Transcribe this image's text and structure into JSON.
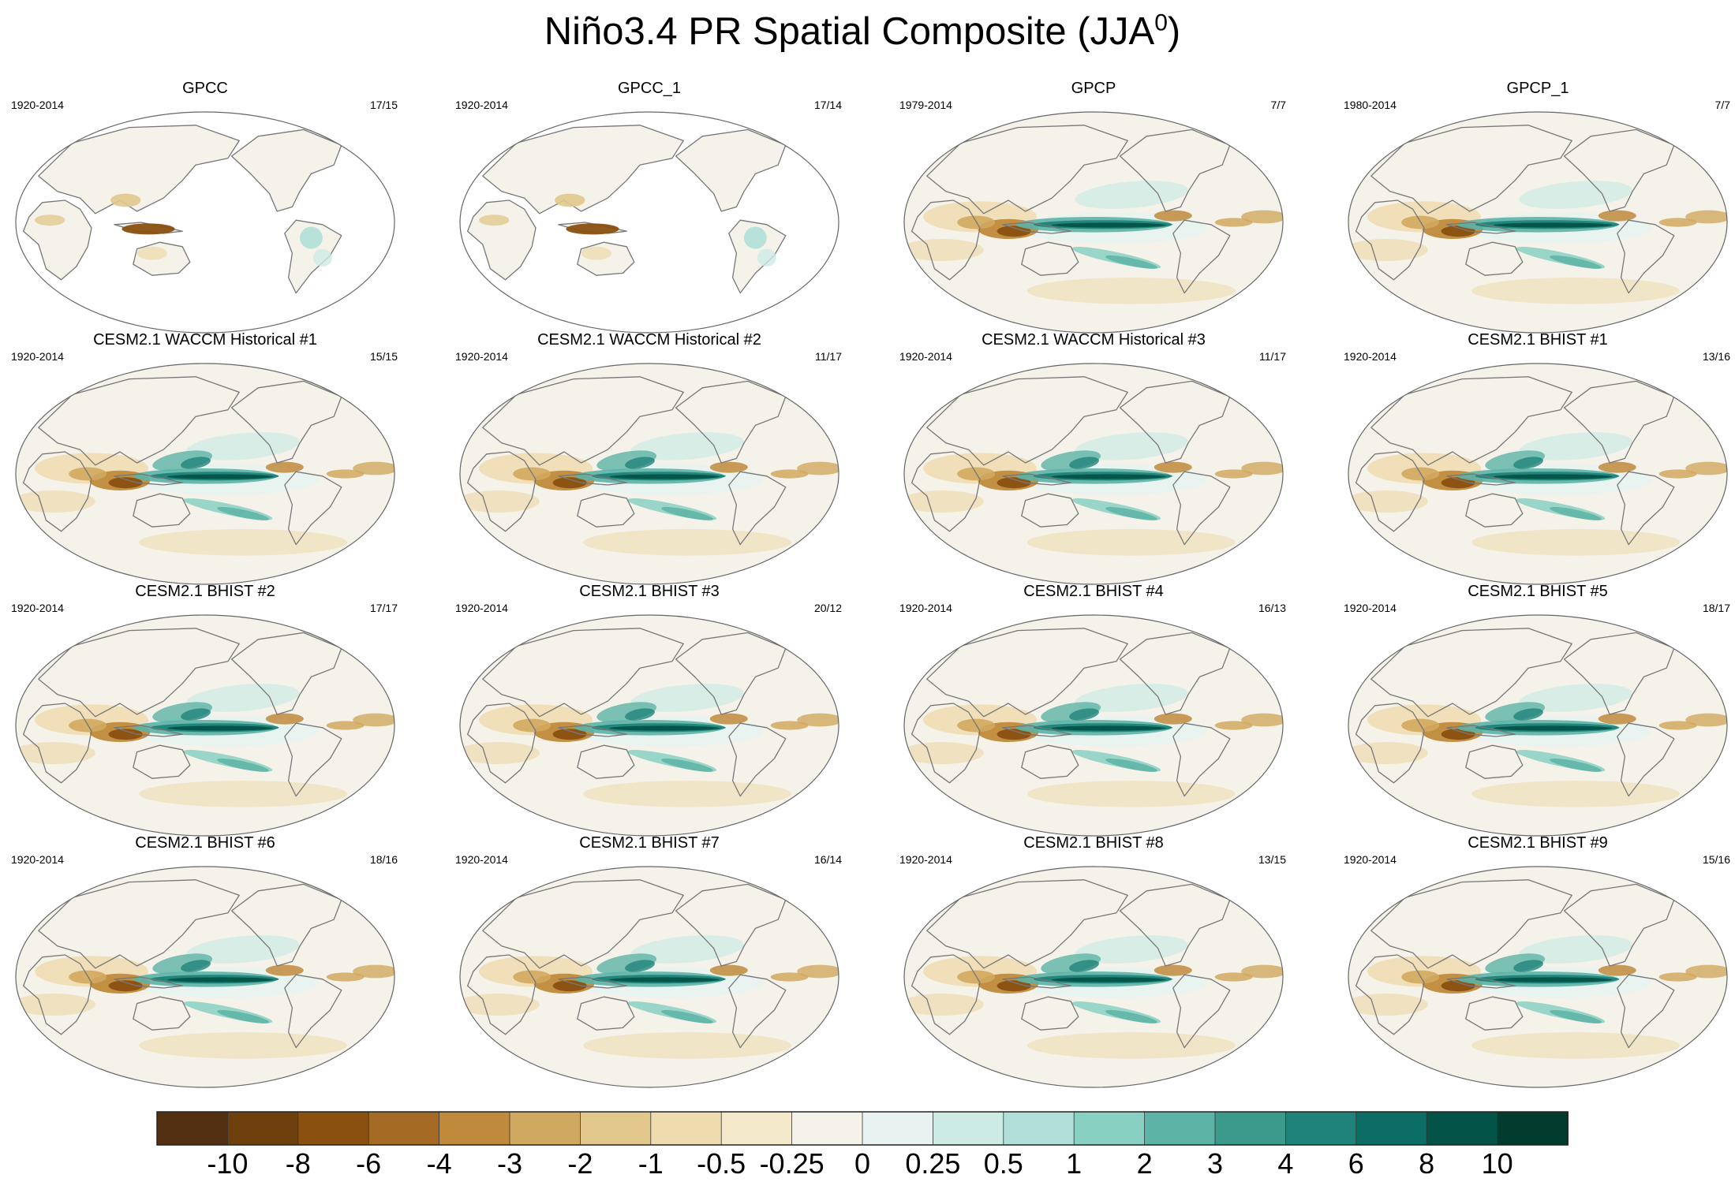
{
  "title": {
    "main": "Niño3.4 PR Spatial Composite (JJA",
    "superscript": "0",
    "suffix": ")"
  },
  "panels": [
    {
      "title": "GPCC",
      "years": "1920-2014",
      "count": "17/15",
      "type": "obs_land"
    },
    {
      "title": "GPCC_1",
      "years": "1920-2014",
      "count": "17/14",
      "type": "obs_land"
    },
    {
      "title": "GPCP",
      "years": "1979-2014",
      "count": "7/7",
      "type": "obs_full"
    },
    {
      "title": "GPCP_1",
      "years": "1980-2014",
      "count": "7/7",
      "type": "obs_full"
    },
    {
      "title": "CESM2.1 WACCM Historical #1",
      "years": "1920-2014",
      "count": "15/15",
      "type": "model"
    },
    {
      "title": "CESM2.1 WACCM Historical #2",
      "years": "1920-2014",
      "count": "11/17",
      "type": "model"
    },
    {
      "title": "CESM2.1 WACCM Historical #3",
      "years": "1920-2014",
      "count": "11/17",
      "type": "model"
    },
    {
      "title": "CESM2.1 BHIST #1",
      "years": "1920-2014",
      "count": "13/16",
      "type": "model"
    },
    {
      "title": "CESM2.1 BHIST #2",
      "years": "1920-2014",
      "count": "17/17",
      "type": "model"
    },
    {
      "title": "CESM2.1 BHIST #3",
      "years": "1920-2014",
      "count": "20/12",
      "type": "model"
    },
    {
      "title": "CESM2.1 BHIST #4",
      "years": "1920-2014",
      "count": "16/13",
      "type": "model"
    },
    {
      "title": "CESM2.1 BHIST #5",
      "years": "1920-2014",
      "count": "18/17",
      "type": "model"
    },
    {
      "title": "CESM2.1 BHIST #6",
      "years": "1920-2014",
      "count": "18/16",
      "type": "model"
    },
    {
      "title": "CESM2.1 BHIST #7",
      "years": "1920-2014",
      "count": "16/14",
      "type": "model"
    },
    {
      "title": "CESM2.1 BHIST #8",
      "years": "1920-2014",
      "count": "13/15",
      "type": "model"
    },
    {
      "title": "CESM2.1 BHIST #9",
      "years": "1920-2014",
      "count": "15/16",
      "type": "model"
    }
  ],
  "colorbar": {
    "labels": [
      "-10",
      "-8",
      "-6",
      "-4",
      "-3",
      "-2",
      "-1",
      "-0.5",
      "-0.25",
      "0",
      "0.25",
      "0.5",
      "1",
      "2",
      "3",
      "4",
      "6",
      "8",
      "10"
    ],
    "colors": [
      "#533011",
      "#6e400e",
      "#8a5010",
      "#a56a24",
      "#bf8a3c",
      "#d1a85f",
      "#e2c88d",
      "#eedcaf",
      "#f5e9cb",
      "#f5f2ea",
      "#e8f3f1",
      "#cdebe5",
      "#b0e0d7",
      "#88d0c2",
      "#5db3a5",
      "#3c9a8d",
      "#20837a",
      "#0b6d64",
      "#035349",
      "#013c2f"
    ]
  },
  "map_colors": {
    "ocean": "#f5f2ea",
    "land_blank": "#ffffff",
    "coast": "#777777",
    "outline": "#666666"
  }
}
